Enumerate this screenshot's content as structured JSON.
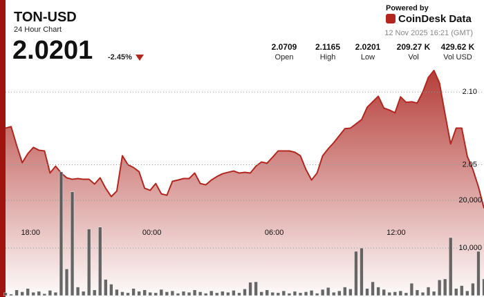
{
  "header": {
    "symbol": "TON-USD",
    "subtitle": "24 Hour Chart",
    "price": "2.0201",
    "change": "-2.45%",
    "stats": [
      {
        "value": "2.0709",
        "label": "Open"
      },
      {
        "value": "2.1165",
        "label": "High"
      },
      {
        "value": "2.0201",
        "label": "Low"
      },
      {
        "value": "209.27 K",
        "label": "Vol"
      },
      {
        "value": "429.62 K",
        "label": "Vol USD"
      }
    ],
    "powered_by": "Powered by",
    "brand": "CoinDesk Data",
    "timestamp": "12 Nov 2025 16:21 (GMT)"
  },
  "chart_data": {
    "type": "line",
    "xlim": [
      0,
      86
    ],
    "xticks": [
      {
        "value": 4.5,
        "label": "18:00"
      },
      {
        "value": 26.3,
        "label": "00:00"
      },
      {
        "value": 48.3,
        "label": "06:00"
      },
      {
        "value": 70.2,
        "label": "12:00"
      }
    ],
    "ylim": [
      1.96,
      2.14
    ],
    "yticks": [
      2.05,
      {
        "value": 2.1,
        "label": "2.10"
      }
    ],
    "y2lim": [
      0,
      55000
    ],
    "y2ticks": [
      {
        "value": 10000,
        "label": "10,000"
      },
      {
        "value": 20000,
        "label": "20,000"
      }
    ],
    "grid": true,
    "series": [
      {
        "color": "#b3261e",
        "fill": true,
        "values": [
          2.0752,
          2.0762,
          2.0633,
          2.0514,
          2.0576,
          2.0619,
          2.06,
          2.0595,
          2.0443,
          2.049,
          2.0443,
          2.041,
          2.04,
          2.0405,
          2.04,
          2.04,
          2.0367,
          2.041,
          2.0338,
          2.0281,
          2.0319,
          2.0562,
          2.05,
          2.0481,
          2.0452,
          2.0338,
          2.0324,
          2.0371,
          2.03,
          2.029,
          2.0386,
          2.0395,
          2.0405,
          2.0405,
          2.0443,
          2.0371,
          2.0362,
          2.0395,
          2.0419,
          2.0438,
          2.0448,
          2.0457,
          2.0443,
          2.0448,
          2.0443,
          2.049,
          2.0519,
          2.051,
          2.0552,
          2.0595,
          2.0595,
          2.0595,
          2.0586,
          2.0562,
          2.0467,
          2.0395,
          2.0443,
          2.0562,
          2.061,
          2.0652,
          2.07,
          2.0748,
          2.0752,
          2.0781,
          2.081,
          2.0895,
          2.0933,
          2.0971,
          2.089,
          2.0876,
          2.0857,
          2.0967,
          2.0929,
          2.0933,
          2.0924,
          2.1,
          2.11,
          2.1148,
          2.1062,
          2.0848,
          2.0643,
          2.0752,
          2.0752,
          2.0557,
          2.0467,
          2.0348,
          2.0201
        ]
      },
      {
        "type": "bar",
        "axis": "y2",
        "color": "#4d4d4d",
        "values": [
          600,
          300,
          1200,
          800,
          1500,
          700,
          900,
          400,
          1100,
          700,
          26000,
          5600,
          21800,
          1800,
          900,
          14000,
          1200,
          14400,
          3400,
          2400,
          1300,
          800,
          600,
          1500,
          900,
          1200,
          700,
          600,
          1300,
          800,
          1000,
          500,
          900,
          700,
          1200,
          800,
          500,
          1000,
          600,
          900,
          700,
          1100,
          600,
          1400,
          2800,
          2900,
          800,
          1200,
          700,
          600,
          1000,
          500,
          900,
          600,
          800,
          1100,
          500,
          1300,
          1700,
          700,
          1000,
          1800,
          1400,
          9300,
          10000,
          1500,
          2900,
          1800,
          1300,
          700,
          800,
          1000,
          600,
          2600,
          1200,
          700,
          1800,
          900,
          3300,
          3500,
          12200,
          1500,
          2100,
          1000,
          2600,
          9300,
          3500
        ]
      }
    ]
  }
}
